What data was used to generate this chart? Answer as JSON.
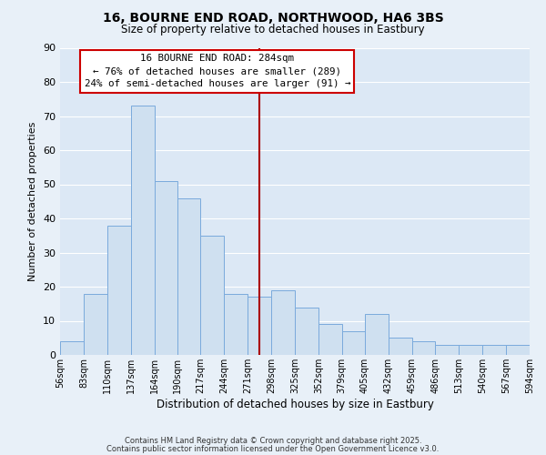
{
  "title": "16, BOURNE END ROAD, NORTHWOOD, HA6 3BS",
  "subtitle": "Size of property relative to detached houses in Eastbury",
  "xlabel": "Distribution of detached houses by size in Eastbury",
  "ylabel": "Number of detached properties",
  "bar_color": "#cfe0f0",
  "bar_edge_color": "#7aaadc",
  "background_color": "#dce8f5",
  "fig_bg_color": "#e8f0f8",
  "grid_color": "#ffffff",
  "bin_edges": [
    56,
    83,
    110,
    137,
    164,
    190,
    217,
    244,
    271,
    298,
    325,
    352,
    379,
    405,
    432,
    459,
    486,
    513,
    540,
    567,
    594
  ],
  "bin_labels": [
    "56sqm",
    "83sqm",
    "110sqm",
    "137sqm",
    "164sqm",
    "190sqm",
    "217sqm",
    "244sqm",
    "271sqm",
    "298sqm",
    "325sqm",
    "352sqm",
    "379sqm",
    "405sqm",
    "432sqm",
    "459sqm",
    "486sqm",
    "513sqm",
    "540sqm",
    "567sqm",
    "594sqm"
  ],
  "counts": [
    4,
    18,
    38,
    73,
    51,
    46,
    35,
    18,
    17,
    19,
    14,
    9,
    7,
    12,
    5,
    4,
    3,
    3,
    3,
    3
  ],
  "ylim": [
    0,
    90
  ],
  "yticks": [
    0,
    10,
    20,
    30,
    40,
    50,
    60,
    70,
    80,
    90
  ],
  "vline_x": 284,
  "vline_color": "#aa0000",
  "annotation_title": "16 BOURNE END ROAD: 284sqm",
  "annotation_line1": "← 76% of detached houses are smaller (289)",
  "annotation_line2": "24% of semi-detached houses are larger (91) →",
  "annotation_box_color": "#ffffff",
  "annotation_box_edge_color": "#cc0000",
  "footer1": "Contains HM Land Registry data © Crown copyright and database right 2025.",
  "footer2": "Contains public sector information licensed under the Open Government Licence v3.0."
}
